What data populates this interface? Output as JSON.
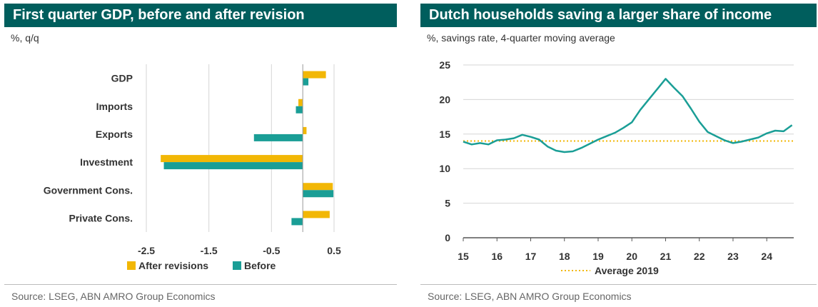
{
  "colors": {
    "header_bg": "#005e5d",
    "after": "#f2b705",
    "before": "#1a9e96",
    "line": "#1a9e96",
    "avg": "#f2b705",
    "grid": "#d6d6d6"
  },
  "left": {
    "title": "First quarter GDP, before and after revision",
    "subtitle": "%, q/q",
    "source": "Source: LSEG, ABN AMRO Group Economics",
    "chart_data": {
      "type": "bar",
      "orientation": "horizontal",
      "categories": [
        "GDP",
        "Imports",
        "Exports",
        "Investment",
        "Government Cons.",
        "Private Cons."
      ],
      "series": [
        {
          "name": "After revisions",
          "values": [
            0.37,
            -0.07,
            0.06,
            -2.27,
            0.48,
            0.43
          ]
        },
        {
          "name": "Before",
          "values": [
            0.09,
            -0.11,
            -0.78,
            -2.22,
            0.49,
            -0.18
          ]
        }
      ],
      "xticks": [
        "-2.5",
        "-1.5",
        "-0.5",
        "0.5"
      ],
      "xlim": [
        -2.5,
        0.5
      ],
      "grid": true,
      "legend": "bottom"
    }
  },
  "right": {
    "title": "Dutch households saving a larger share of income",
    "subtitle": "%, savings rate, 4-quarter moving average",
    "source": "Source: LSEG, ABN AMRO Group Economics",
    "chart_data": {
      "type": "line",
      "xticks": [
        "15",
        "16",
        "17",
        "18",
        "19",
        "20",
        "21",
        "22",
        "23",
        "24"
      ],
      "yticks": [
        "0",
        "5",
        "10",
        "15",
        "20",
        "25"
      ],
      "ylim": [
        0,
        25
      ],
      "xlim": [
        2015,
        2024.8
      ],
      "series": [
        {
          "name": "",
          "x": [
            2015,
            2015.25,
            2015.5,
            2015.75,
            2016,
            2016.25,
            2016.5,
            2016.75,
            2017,
            2017.25,
            2017.5,
            2017.75,
            2018,
            2018.25,
            2018.5,
            2018.75,
            2019,
            2019.25,
            2019.5,
            2019.75,
            2020,
            2020.25,
            2020.5,
            2020.75,
            2021,
            2021.25,
            2021.5,
            2021.75,
            2022,
            2022.25,
            2022.5,
            2022.75,
            2023,
            2023.25,
            2023.5,
            2023.75,
            2024,
            2024.25,
            2024.5,
            2024.75
          ],
          "y": [
            13.9,
            13.5,
            13.7,
            13.5,
            14.1,
            14.2,
            14.4,
            14.9,
            14.6,
            14.2,
            13.2,
            12.6,
            12.4,
            12.5,
            13.0,
            13.6,
            14.2,
            14.7,
            15.2,
            15.9,
            16.7,
            18.5,
            20.0,
            21.5,
            23.0,
            21.7,
            20.5,
            18.7,
            16.8,
            15.3,
            14.7,
            14.1,
            13.7,
            13.9,
            14.2,
            14.5,
            15.1,
            15.5,
            15.4,
            16.3
          ]
        },
        {
          "name": "Average 2019",
          "x": [
            2015,
            2024.8
          ],
          "y": [
            14.0,
            14.0
          ]
        }
      ],
      "grid": true,
      "legend": "bottom"
    }
  }
}
